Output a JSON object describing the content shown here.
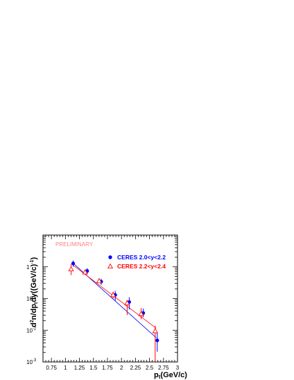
{
  "chart_data": {
    "type": "scatter",
    "annotation": "PRELIMINARY",
    "xlabel": "p_t (GeV/c)",
    "ylabel": "d²n/dp_tdy((GeV/c)⁻¹)",
    "xlim": [
      0.6,
      3.0
    ],
    "ylim": [
      0.001,
      10
    ],
    "log_y": true,
    "x_ticks": [
      "0.75",
      "1",
      "1.25",
      "1.5",
      "1.75",
      "2",
      "2.25",
      "2.5",
      "2.75",
      "3"
    ],
    "y_ticks": [
      {
        "base": "10",
        "exp": "-3",
        "value": 0.001
      },
      {
        "base": "10",
        "exp": "-2",
        "value": 0.01
      },
      {
        "base": "10",
        "exp": "-1",
        "value": 0.1
      },
      {
        "base": "1",
        "exp": "",
        "value": 1
      }
    ],
    "legend_position": "top-right",
    "series": [
      {
        "name": "CERES 2.0<y<2.2",
        "marker": "filled-circle",
        "color": "#0000ff",
        "fit_color": "#0000ff",
        "points": [
          {
            "x": 1.12,
            "y": 1.28,
            "ylo": 1.02,
            "yhi": 1.58
          },
          {
            "x": 1.37,
            "y": 0.74,
            "ylo": 0.6,
            "yhi": 0.9
          },
          {
            "x": 1.62,
            "y": 0.34,
            "ylo": 0.27,
            "yhi": 0.42
          },
          {
            "x": 1.87,
            "y": 0.13,
            "ylo": 0.085,
            "yhi": 0.175
          },
          {
            "x": 2.12,
            "y": 0.078,
            "ylo": 0.045,
            "yhi": 0.11
          },
          {
            "x": 2.37,
            "y": 0.035,
            "ylo": 0.026,
            "yhi": 0.048
          },
          {
            "x": 2.62,
            "y": 0.0048,
            "ylo": 0.0021,
            "yhi": 0.0085
          }
        ],
        "fit": [
          {
            "x": 1.12,
            "y": 1.38
          },
          {
            "x": 2.62,
            "y": 0.0058
          }
        ]
      },
      {
        "name": "CERES 2.2<y<2.4",
        "marker": "open-triangle",
        "color": "#ff0000",
        "fit_color": "#ff0000",
        "points": [
          {
            "x": 1.12,
            "y": 0.85,
            "ylo": 0.55,
            "yhi": 1.2
          },
          {
            "x": 1.37,
            "y": 0.68,
            "ylo": 0.58,
            "yhi": 0.8
          },
          {
            "x": 1.62,
            "y": 0.36,
            "ylo": 0.31,
            "yhi": 0.42
          },
          {
            "x": 1.87,
            "y": 0.13,
            "ylo": 0.1,
            "yhi": 0.165
          },
          {
            "x": 2.12,
            "y": 0.072,
            "ylo": 0.03,
            "yhi": 0.09
          },
          {
            "x": 2.37,
            "y": 0.033,
            "ylo": 0.022,
            "yhi": 0.05
          },
          {
            "x": 2.62,
            "y": 0.0095,
            "ylo": 0.001,
            "yhi": 0.014
          }
        ],
        "fit": [
          {
            "x": 1.12,
            "y": 1.18
          },
          {
            "x": 2.62,
            "y": 0.0115
          }
        ]
      }
    ]
  }
}
